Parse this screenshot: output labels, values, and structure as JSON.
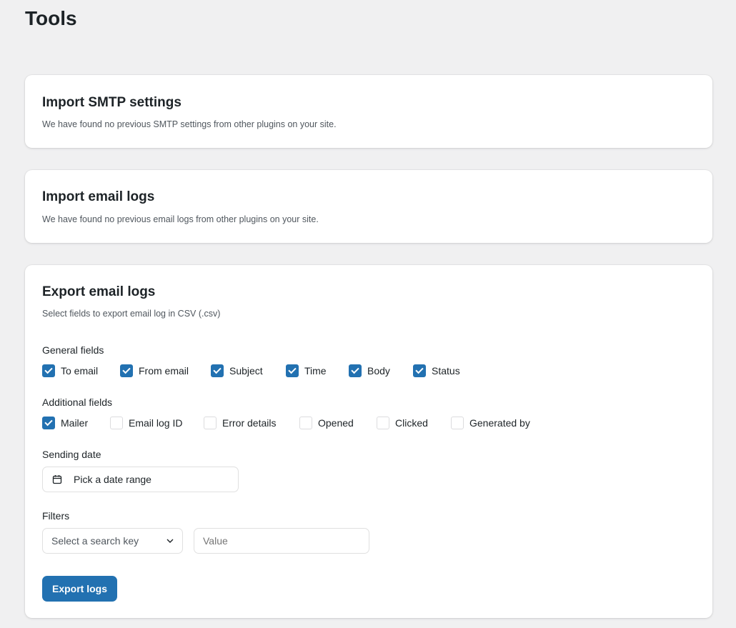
{
  "page": {
    "title": "Tools"
  },
  "import_smtp": {
    "title": "Import SMTP settings",
    "description": "We have found no previous SMTP settings from other plugins on your site."
  },
  "import_logs": {
    "title": "Import email logs",
    "description": "We have found no previous email logs from other plugins on your site."
  },
  "export": {
    "title": "Export email logs",
    "description": "Select fields to export email log in CSV (.csv)",
    "general_label": "General fields",
    "general_fields": [
      {
        "label": "To email",
        "checked": true
      },
      {
        "label": "From email",
        "checked": true
      },
      {
        "label": "Subject",
        "checked": true
      },
      {
        "label": "Time",
        "checked": true
      },
      {
        "label": "Body",
        "checked": true
      },
      {
        "label": "Status",
        "checked": true
      }
    ],
    "additional_label": "Additional fields",
    "additional_fields": [
      {
        "label": "Mailer",
        "checked": true
      },
      {
        "label": "Email log ID",
        "checked": false
      },
      {
        "label": "Error details",
        "checked": false
      },
      {
        "label": "Opened",
        "checked": false
      },
      {
        "label": "Clicked",
        "checked": false
      },
      {
        "label": "Generated by",
        "checked": false
      }
    ],
    "date_label": "Sending date",
    "date_placeholder": "Pick a date range",
    "filters_label": "Filters",
    "search_key_placeholder": "Select a search key",
    "value_placeholder": "Value",
    "export_button": "Export logs"
  },
  "colors": {
    "accent": "#2271b1",
    "background": "#f0f0f1"
  }
}
